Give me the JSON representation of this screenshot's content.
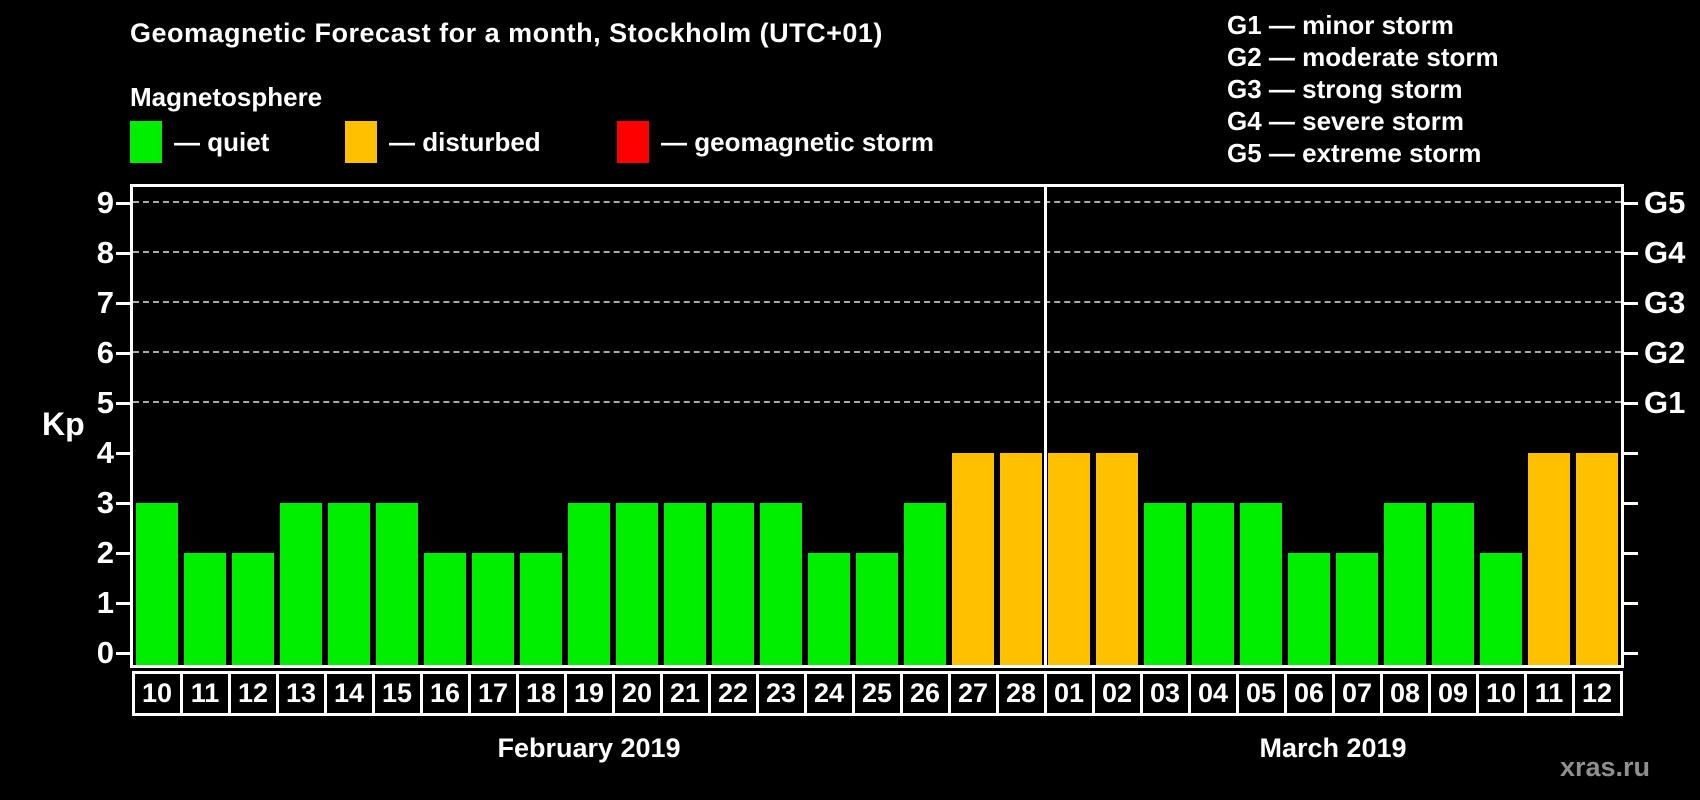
{
  "title": "Geomagnetic Forecast for a month, Stockholm (UTC+01)",
  "subtitle": "Magnetosphere",
  "legend": {
    "items": [
      {
        "name": "quiet",
        "label": "— quiet",
        "color": "#00ee00"
      },
      {
        "name": "disturbed",
        "label": "— disturbed",
        "color": "#ffc000"
      },
      {
        "name": "storm",
        "label": "— geomagnetic storm",
        "color": "#ff0000"
      }
    ]
  },
  "g_scale_legend": {
    "lines": [
      "G1 — minor storm",
      "G2 — moderate storm",
      "G3 — strong storm",
      "G4 — severe storm",
      "G5 — extreme storm"
    ]
  },
  "watermark": "xras.ru",
  "colors": {
    "quiet": "#00ee00",
    "disturbed": "#ffc000",
    "storm": "#ff0000",
    "axis": "#ffffff",
    "grid": "#aaaaaa",
    "watermark": "#8f8f8f",
    "background": "#000000"
  },
  "chart_data": {
    "type": "bar",
    "title": "Geomagnetic Forecast for a month, Stockholm (UTC+01)",
    "ylabel": "Kp",
    "ylim": [
      0,
      9
    ],
    "yticks": [
      0,
      1,
      2,
      3,
      4,
      5,
      6,
      7,
      8,
      9
    ],
    "gridlines_at_kp": [
      5,
      6,
      7,
      8,
      9
    ],
    "grid": "dashed horizontal at storm levels only",
    "legend_position": "top-left",
    "right_axis_labels": [
      {
        "kp": 5,
        "label": "G1"
      },
      {
        "kp": 6,
        "label": "G2"
      },
      {
        "kp": 7,
        "label": "G3"
      },
      {
        "kp": 8,
        "label": "G4"
      },
      {
        "kp": 9,
        "label": "G5"
      }
    ],
    "months": [
      {
        "label": "February 2019",
        "days_count": 19
      },
      {
        "label": "March 2019",
        "days_count": 12
      }
    ],
    "bars": [
      {
        "day": "10",
        "kp": 3,
        "status": "quiet"
      },
      {
        "day": "11",
        "kp": 2,
        "status": "quiet"
      },
      {
        "day": "12",
        "kp": 2,
        "status": "quiet"
      },
      {
        "day": "13",
        "kp": 3,
        "status": "quiet"
      },
      {
        "day": "14",
        "kp": 3,
        "status": "quiet"
      },
      {
        "day": "15",
        "kp": 3,
        "status": "quiet"
      },
      {
        "day": "16",
        "kp": 2,
        "status": "quiet"
      },
      {
        "day": "17",
        "kp": 2,
        "status": "quiet"
      },
      {
        "day": "18",
        "kp": 2,
        "status": "quiet"
      },
      {
        "day": "19",
        "kp": 3,
        "status": "quiet"
      },
      {
        "day": "20",
        "kp": 3,
        "status": "quiet"
      },
      {
        "day": "21",
        "kp": 3,
        "status": "quiet"
      },
      {
        "day": "22",
        "kp": 3,
        "status": "quiet"
      },
      {
        "day": "23",
        "kp": 3,
        "status": "quiet"
      },
      {
        "day": "24",
        "kp": 2,
        "status": "quiet"
      },
      {
        "day": "25",
        "kp": 2,
        "status": "quiet"
      },
      {
        "day": "26",
        "kp": 3,
        "status": "quiet"
      },
      {
        "day": "27",
        "kp": 4,
        "status": "disturbed"
      },
      {
        "day": "28",
        "kp": 4,
        "status": "disturbed"
      },
      {
        "day": "01",
        "kp": 4,
        "status": "disturbed"
      },
      {
        "day": "02",
        "kp": 4,
        "status": "disturbed"
      },
      {
        "day": "03",
        "kp": 3,
        "status": "quiet"
      },
      {
        "day": "04",
        "kp": 3,
        "status": "quiet"
      },
      {
        "day": "05",
        "kp": 3,
        "status": "quiet"
      },
      {
        "day": "06",
        "kp": 2,
        "status": "quiet"
      },
      {
        "day": "07",
        "kp": 2,
        "status": "quiet"
      },
      {
        "day": "08",
        "kp": 3,
        "status": "quiet"
      },
      {
        "day": "09",
        "kp": 3,
        "status": "quiet"
      },
      {
        "day": "10",
        "kp": 2,
        "status": "quiet"
      },
      {
        "day": "11",
        "kp": 4,
        "status": "disturbed"
      },
      {
        "day": "12",
        "kp": 4,
        "status": "disturbed"
      }
    ]
  }
}
